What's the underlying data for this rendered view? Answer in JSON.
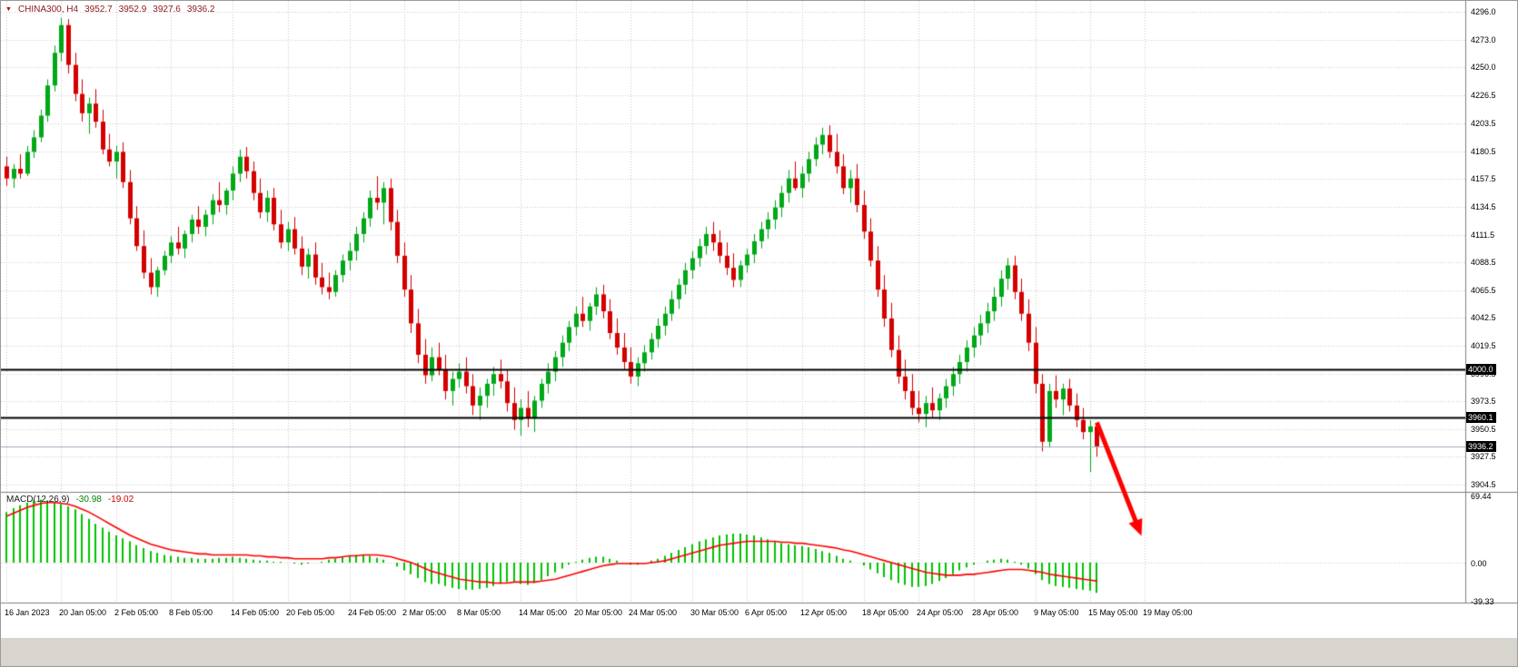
{
  "quote": {
    "symbol": "CHINA300, H4",
    "open": "3952.7",
    "high": "3952.9",
    "low": "3927.6",
    "close": "3936.2"
  },
  "macd_panel": {
    "name": "MACD(12,26,9)",
    "macd_value": "-30.98",
    "signal_value": "-19.02"
  },
  "colors": {
    "bull": "#00a818",
    "bear": "#d40000",
    "grid": "#c9c9c9",
    "separator": "#808080",
    "macd_histogram": "#00c400",
    "macd_signal": "#ff0000",
    "level_line": "#000000",
    "current_price_line": "#a9a9bd",
    "arrow": "#ff0000",
    "quote_text": "#8b1a1a"
  },
  "chart_data": {
    "type": "candlestick",
    "symbol": "CHINA300",
    "timeframe": "H4",
    "price_axis": {
      "min": 3904.5,
      "max": 4296.0,
      "ticks": [
        {
          "v": 4296.0,
          "label": "4296.0"
        },
        {
          "v": 4273.0,
          "label": "4273.0"
        },
        {
          "v": 4250.0,
          "label": "4250.0"
        },
        {
          "v": 4226.5,
          "label": "4226.5"
        },
        {
          "v": 4203.5,
          "label": "4203.5"
        },
        {
          "v": 4180.5,
          "label": "4180.5"
        },
        {
          "v": 4157.5,
          "label": "4157.5"
        },
        {
          "v": 4134.5,
          "label": "4134.5"
        },
        {
          "v": 4111.5,
          "label": "4111.5"
        },
        {
          "v": 4088.5,
          "label": "4088.5"
        },
        {
          "v": 4065.5,
          "label": "4065.5"
        },
        {
          "v": 4042.5,
          "label": "4042.5"
        },
        {
          "v": 4019.5,
          "label": "4019.5"
        },
        {
          "v": 3996.5,
          "label": "3996.5"
        },
        {
          "v": 3973.5,
          "label": "3973.5"
        },
        {
          "v": 3950.5,
          "label": "3950.5"
        },
        {
          "v": 3927.5,
          "label": "3927.5"
        },
        {
          "v": 3904.5,
          "label": "3904.5"
        }
      ]
    },
    "levels": [
      {
        "id": "resistance-4000",
        "v": 4000.0,
        "label": "4000.0",
        "style": "solid-black"
      },
      {
        "id": "support-3960",
        "v": 3960.1,
        "label": "3960.1",
        "style": "solid-black"
      },
      {
        "id": "current-price",
        "v": 3936.2,
        "label": "3936.2",
        "style": "current"
      }
    ],
    "time_axis": {
      "ticks": [
        {
          "i": 0,
          "label": "16 Jan 2023"
        },
        {
          "i": 8,
          "label": "20 Jan 05:00"
        },
        {
          "i": 16,
          "label": "2 Feb 05:00"
        },
        {
          "i": 24,
          "label": "8 Feb 05:00"
        },
        {
          "i": 33,
          "label": "14 Feb 05:00"
        },
        {
          "i": 41,
          "label": "20 Feb 05:00"
        },
        {
          "i": 50,
          "label": "24 Feb 05:00"
        },
        {
          "i": 58,
          "label": "2 Mar 05:00"
        },
        {
          "i": 66,
          "label": "8 Mar 05:00"
        },
        {
          "i": 75,
          "label": "14 Mar 05:00"
        },
        {
          "i": 83,
          "label": "20 Mar 05:00"
        },
        {
          "i": 91,
          "label": "24 Mar 05:00"
        },
        {
          "i": 100,
          "label": "30 Mar 05:00"
        },
        {
          "i": 108,
          "label": "6 Apr 05:00"
        },
        {
          "i": 116,
          "label": "12 Apr 05:00"
        },
        {
          "i": 125,
          "label": "18 Apr 05:00"
        },
        {
          "i": 133,
          "label": "24 Apr 05:00"
        },
        {
          "i": 141,
          "label": "28 Apr 05:00"
        },
        {
          "i": 150,
          "label": "9 May 05:00"
        },
        {
          "i": 158,
          "label": "15 May 05:00"
        },
        {
          "i": 166,
          "label": "19 May 05:00"
        }
      ]
    },
    "candles": [
      [
        4168,
        4176,
        4152,
        4158
      ],
      [
        4158,
        4170,
        4150,
        4166
      ],
      [
        4166,
        4178,
        4158,
        4162
      ],
      [
        4162,
        4185,
        4160,
        4180
      ],
      [
        4180,
        4198,
        4175,
        4192
      ],
      [
        4192,
        4215,
        4188,
        4210
      ],
      [
        4210,
        4240,
        4205,
        4235
      ],
      [
        4235,
        4268,
        4230,
        4262
      ],
      [
        4262,
        4291,
        4255,
        4285
      ],
      [
        4285,
        4290,
        4245,
        4252
      ],
      [
        4252,
        4262,
        4222,
        4228
      ],
      [
        4228,
        4240,
        4205,
        4212
      ],
      [
        4212,
        4225,
        4195,
        4220
      ],
      [
        4220,
        4232,
        4200,
        4205
      ],
      [
        4205,
        4215,
        4178,
        4182
      ],
      [
        4182,
        4195,
        4168,
        4172
      ],
      [
        4172,
        4185,
        4158,
        4180
      ],
      [
        4180,
        4188,
        4150,
        4155
      ],
      [
        4155,
        4165,
        4120,
        4125
      ],
      [
        4125,
        4135,
        4098,
        4102
      ],
      [
        4102,
        4115,
        4075,
        4080
      ],
      [
        4080,
        4092,
        4062,
        4068
      ],
      [
        4068,
        4085,
        4060,
        4082
      ],
      [
        4082,
        4098,
        4078,
        4094
      ],
      [
        4094,
        4110,
        4088,
        4105
      ],
      [
        4105,
        4118,
        4095,
        4100
      ],
      [
        4100,
        4115,
        4092,
        4112
      ],
      [
        4112,
        4128,
        4105,
        4124
      ],
      [
        4124,
        4135,
        4112,
        4118
      ],
      [
        4118,
        4132,
        4110,
        4128
      ],
      [
        4128,
        4145,
        4120,
        4140
      ],
      [
        4140,
        4155,
        4130,
        4136
      ],
      [
        4136,
        4150,
        4128,
        4148
      ],
      [
        4148,
        4168,
        4140,
        4162
      ],
      [
        4162,
        4182,
        4155,
        4176
      ],
      [
        4176,
        4184,
        4158,
        4164
      ],
      [
        4164,
        4172,
        4140,
        4146
      ],
      [
        4146,
        4158,
        4125,
        4130
      ],
      [
        4130,
        4148,
        4122,
        4142
      ],
      [
        4142,
        4150,
        4115,
        4120
      ],
      [
        4120,
        4132,
        4100,
        4105
      ],
      [
        4105,
        4122,
        4098,
        4116
      ],
      [
        4116,
        4126,
        4095,
        4100
      ],
      [
        4100,
        4110,
        4078,
        4085
      ],
      [
        4085,
        4100,
        4075,
        4095
      ],
      [
        4095,
        4105,
        4070,
        4076
      ],
      [
        4076,
        4088,
        4062,
        4068
      ],
      [
        4068,
        4080,
        4058,
        4064
      ],
      [
        4064,
        4082,
        4060,
        4078
      ],
      [
        4078,
        4095,
        4072,
        4090
      ],
      [
        4090,
        4105,
        4082,
        4098
      ],
      [
        4098,
        4118,
        4090,
        4112
      ],
      [
        4112,
        4130,
        4105,
        4125
      ],
      [
        4125,
        4148,
        4118,
        4142
      ],
      [
        4142,
        4160,
        4132,
        4138
      ],
      [
        4138,
        4155,
        4120,
        4150
      ],
      [
        4150,
        4158,
        4115,
        4122
      ],
      [
        4122,
        4132,
        4088,
        4094
      ],
      [
        4094,
        4105,
        4060,
        4066
      ],
      [
        4066,
        4078,
        4030,
        4038
      ],
      [
        4038,
        4050,
        4005,
        4012
      ],
      [
        4012,
        4025,
        3988,
        3995
      ],
      [
        3995,
        4018,
        3990,
        4010
      ],
      [
        4010,
        4022,
        3995,
        4000
      ],
      [
        4000,
        4012,
        3975,
        3982
      ],
      [
        3982,
        3998,
        3970,
        3992
      ],
      [
        3992,
        4005,
        3985,
        3998
      ],
      [
        3998,
        4010,
        3980,
        3986
      ],
      [
        3986,
        3996,
        3962,
        3970
      ],
      [
        3970,
        3985,
        3958,
        3978
      ],
      [
        3978,
        3992,
        3968,
        3988
      ],
      [
        3988,
        4002,
        3978,
        3996
      ],
      [
        3996,
        4008,
        3984,
        3990
      ],
      [
        3990,
        3999,
        3965,
        3972
      ],
      [
        3972,
        3985,
        3950,
        3958
      ],
      [
        3958,
        3975,
        3945,
        3968
      ],
      [
        3968,
        3982,
        3952,
        3960
      ],
      [
        3960,
        3978,
        3948,
        3974
      ],
      [
        3974,
        3992,
        3968,
        3988
      ],
      [
        3988,
        4005,
        3980,
        3998
      ],
      [
        3998,
        4015,
        3990,
        4010
      ],
      [
        4010,
        4028,
        4002,
        4022
      ],
      [
        4022,
        4040,
        4015,
        4035
      ],
      [
        4035,
        4052,
        4028,
        4046
      ],
      [
        4046,
        4060,
        4035,
        4040
      ],
      [
        4040,
        4055,
        4032,
        4052
      ],
      [
        4052,
        4068,
        4045,
        4062
      ],
      [
        4062,
        4070,
        4042,
        4048
      ],
      [
        4048,
        4058,
        4025,
        4030
      ],
      [
        4030,
        4042,
        4012,
        4018
      ],
      [
        4018,
        4030,
        4000,
        4006
      ],
      [
        4006,
        4018,
        3988,
        3994
      ],
      [
        3994,
        4010,
        3986,
        4005
      ],
      [
        4005,
        4020,
        3998,
        4014
      ],
      [
        4014,
        4030,
        4008,
        4025
      ],
      [
        4025,
        4042,
        4018,
        4036
      ],
      [
        4036,
        4052,
        4028,
        4046
      ],
      [
        4046,
        4065,
        4040,
        4058
      ],
      [
        4058,
        4075,
        4050,
        4070
      ],
      [
        4070,
        4088,
        4062,
        4082
      ],
      [
        4082,
        4098,
        4075,
        4092
      ],
      [
        4092,
        4108,
        4085,
        4102
      ],
      [
        4102,
        4118,
        4095,
        4112
      ],
      [
        4112,
        4122,
        4098,
        4105
      ],
      [
        4105,
        4115,
        4088,
        4094
      ],
      [
        4094,
        4105,
        4078,
        4084
      ],
      [
        4084,
        4096,
        4068,
        4074
      ],
      [
        4074,
        4090,
        4068,
        4086
      ],
      [
        4086,
        4100,
        4080,
        4095
      ],
      [
        4095,
        4112,
        4088,
        4106
      ],
      [
        4106,
        4122,
        4100,
        4116
      ],
      [
        4116,
        4130,
        4108,
        4124
      ],
      [
        4124,
        4140,
        4116,
        4134
      ],
      [
        4134,
        4152,
        4126,
        4146
      ],
      [
        4146,
        4165,
        4138,
        4158
      ],
      [
        4158,
        4172,
        4148,
        4150
      ],
      [
        4150,
        4168,
        4142,
        4162
      ],
      [
        4162,
        4180,
        4155,
        4174
      ],
      [
        4174,
        4192,
        4168,
        4186
      ],
      [
        4186,
        4200,
        4178,
        4194
      ],
      [
        4194,
        4202,
        4175,
        4180
      ],
      [
        4180,
        4195,
        4162,
        4168
      ],
      [
        4168,
        4178,
        4145,
        4150
      ],
      [
        4150,
        4165,
        4138,
        4158
      ],
      [
        4158,
        4170,
        4130,
        4136
      ],
      [
        4136,
        4148,
        4108,
        4114
      ],
      [
        4114,
        4125,
        4085,
        4090
      ],
      [
        4090,
        4102,
        4060,
        4066
      ],
      [
        4066,
        4078,
        4035,
        4042
      ],
      [
        4042,
        4055,
        4010,
        4016
      ],
      [
        4016,
        4028,
        3988,
        3994
      ],
      [
        3994,
        4008,
        3975,
        3982
      ],
      [
        3982,
        3996,
        3962,
        3968
      ],
      [
        3968,
        3982,
        3956,
        3963
      ],
      [
        3963,
        3978,
        3952,
        3972
      ],
      [
        3972,
        3985,
        3960,
        3966
      ],
      [
        3966,
        3980,
        3958,
        3976
      ],
      [
        3976,
        3992,
        3968,
        3986
      ],
      [
        3986,
        4002,
        3978,
        3996
      ],
      [
        3996,
        4012,
        3988,
        4006
      ],
      [
        4006,
        4024,
        3998,
        4018
      ],
      [
        4018,
        4035,
        4010,
        4028
      ],
      [
        4028,
        4045,
        4020,
        4038
      ],
      [
        4038,
        4055,
        4030,
        4048
      ],
      [
        4048,
        4068,
        4040,
        4060
      ],
      [
        4060,
        4082,
        4052,
        4075
      ],
      [
        4075,
        4092,
        4066,
        4086
      ],
      [
        4086,
        4094,
        4058,
        4064
      ],
      [
        4064,
        4075,
        4040,
        4046
      ],
      [
        4046,
        4058,
        4015,
        4022
      ],
      [
        4022,
        4035,
        3980,
        3988
      ],
      [
        3988,
        3996,
        3932,
        3940
      ],
      [
        3940,
        3988,
        3935,
        3982
      ],
      [
        3982,
        3995,
        3968,
        3975
      ],
      [
        3975,
        3988,
        3962,
        3984
      ],
      [
        3984,
        3992,
        3965,
        3970
      ],
      [
        3970,
        3980,
        3952,
        3958
      ],
      [
        3958,
        3968,
        3942,
        3948
      ],
      [
        3948,
        3958,
        3915,
        3952.7
      ],
      [
        3952.7,
        3952.9,
        3927.6,
        3936.2
      ]
    ],
    "macd": {
      "label": "MACD(12,26,9)",
      "current_macd": -30.98,
      "current_signal": -19.02,
      "axis_ticks": [
        {
          "v": 69.44,
          "label": "69.44"
        },
        {
          "v": 0.0,
          "label": "0.00"
        },
        {
          "v": -39.33,
          "label": "-39.33"
        }
      ],
      "histogram": [
        52,
        56,
        59,
        62,
        64,
        65,
        64,
        62,
        60,
        58,
        55,
        50,
        45,
        40,
        36,
        32,
        28,
        25,
        22,
        18,
        15,
        12,
        10,
        8,
        7,
        6,
        5,
        5,
        4,
        4,
        4,
        5,
        5,
        6,
        5,
        4,
        3,
        2,
        2,
        1,
        1,
        0,
        -1,
        -2,
        -1,
        0,
        1,
        3,
        4,
        6,
        7,
        8,
        8,
        7,
        5,
        3,
        0,
        -4,
        -8,
        -12,
        -16,
        -20,
        -22,
        -22,
        -24,
        -26,
        -27,
        -28,
        -28,
        -27,
        -26,
        -24,
        -22,
        -20,
        -20,
        -22,
        -23,
        -21,
        -18,
        -14,
        -10,
        -6,
        -2,
        1,
        3,
        5,
        6,
        6,
        4,
        2,
        0,
        -2,
        -2,
        0,
        2,
        4,
        7,
        10,
        13,
        16,
        19,
        22,
        24,
        26,
        28,
        29,
        30,
        30,
        29,
        28,
        26,
        24,
        22,
        20,
        19,
        18,
        17,
        16,
        14,
        12,
        10,
        7,
        4,
        2,
        0,
        -3,
        -7,
        -11,
        -15,
        -18,
        -21,
        -23,
        -25,
        -25,
        -24,
        -22,
        -19,
        -16,
        -12,
        -8,
        -5,
        -2,
        0,
        2,
        3,
        4,
        3,
        1,
        -2,
        -6,
        -12,
        -18,
        -22,
        -24,
        -25,
        -26,
        -27,
        -28,
        -29,
        -30.98
      ],
      "signal": [
        48,
        51,
        54,
        57,
        59,
        61,
        62,
        62,
        61,
        60,
        58,
        55,
        52,
        48,
        44,
        40,
        36,
        32,
        28,
        25,
        22,
        19,
        17,
        15,
        13,
        12,
        11,
        10,
        9,
        9,
        8,
        8,
        8,
        8,
        8,
        8,
        7,
        7,
        6,
        6,
        5,
        5,
        4,
        4,
        4,
        4,
        4,
        5,
        5,
        6,
        7,
        7,
        8,
        8,
        8,
        7,
        6,
        4,
        2,
        0,
        -3,
        -6,
        -9,
        -11,
        -13,
        -15,
        -17,
        -18,
        -19,
        -20,
        -20,
        -21,
        -21,
        -21,
        -20,
        -20,
        -20,
        -20,
        -19,
        -18,
        -17,
        -15,
        -13,
        -11,
        -9,
        -7,
        -5,
        -3,
        -2,
        -1,
        -1,
        -1,
        -1,
        -1,
        0,
        1,
        2,
        4,
        6,
        8,
        10,
        12,
        14,
        16,
        18,
        19,
        20,
        21,
        22,
        22,
        22,
        22,
        22,
        21,
        21,
        20,
        20,
        19,
        18,
        17,
        16,
        15,
        13,
        12,
        10,
        8,
        6,
        4,
        2,
        0,
        -2,
        -4,
        -6,
        -8,
        -10,
        -11,
        -12,
        -13,
        -13,
        -13,
        -12,
        -12,
        -11,
        -10,
        -9,
        -8,
        -7,
        -7,
        -7,
        -8,
        -9,
        -10,
        -12,
        -13,
        -14,
        -15,
        -16,
        -17,
        -18,
        -19.02
      ]
    },
    "annotation_arrow": {
      "from_index": 159,
      "from_price": 3956,
      "to_index": 165.5,
      "to_price": 3862
    }
  }
}
